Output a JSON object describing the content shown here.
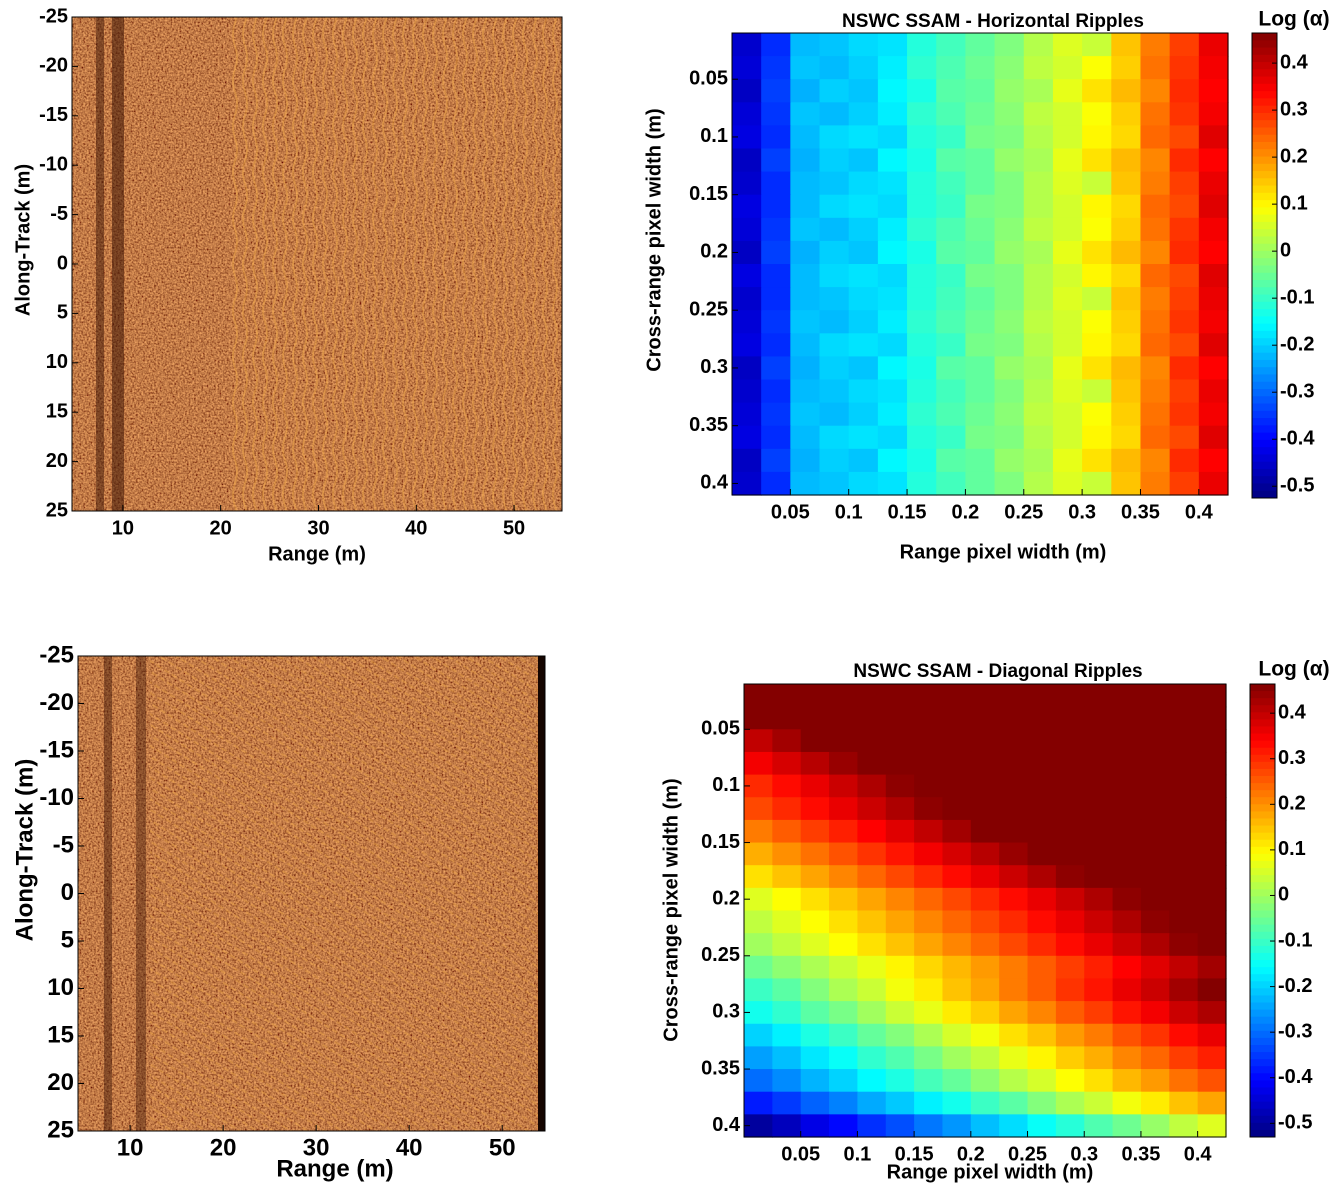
{
  "chart_data": [
    {
      "type": "image",
      "xlabel": "Range (m)",
      "ylabel": "Along-Track (m)",
      "xlim": [
        4.8,
        54.9
      ],
      "ylim": [
        -25,
        25
      ],
      "xticks": [
        10,
        20,
        30,
        40,
        50
      ],
      "yticks": [
        -25,
        -20,
        -15,
        -10,
        -5,
        0,
        5,
        10,
        15,
        20,
        25
      ]
    },
    {
      "type": "heatmap",
      "title": "NSWC SSAM - Horizontal Ripples",
      "xlabel": "Range pixel width (m)",
      "ylabel": "Cross-range pixel width (m)",
      "colorbar_label": "Log (α)",
      "colormap": "jet",
      "xlim": [
        0,
        0.425
      ],
      "ylim": [
        0.01,
        0.41
      ],
      "clim": [
        -0.525,
        0.464
      ],
      "xticks": [
        0.05,
        0.1,
        0.15,
        0.2,
        0.25,
        0.3,
        0.35,
        0.4
      ],
      "yticks": [
        0.05,
        0.1,
        0.15,
        0.2,
        0.25,
        0.3,
        0.35,
        0.4
      ],
      "cticks": [
        -0.5,
        -0.4,
        -0.3,
        -0.2,
        -0.1,
        0,
        0.1,
        0.2,
        0.3,
        0.4
      ],
      "z": [
        [
          -0.45,
          -0.36,
          -0.22,
          -0.21,
          -0.19,
          -0.18,
          -0.12,
          -0.09,
          -0.06,
          -0.03,
          0.02,
          0.06,
          0.04,
          0.15,
          0.22,
          0.28,
          0.36
        ],
        [
          -0.44,
          -0.35,
          -0.21,
          -0.22,
          -0.2,
          -0.17,
          -0.11,
          -0.08,
          -0.05,
          -0.02,
          0.03,
          0.05,
          0.09,
          0.14,
          0.23,
          0.29,
          0.35
        ],
        [
          -0.46,
          -0.34,
          -0.23,
          -0.2,
          -0.21,
          -0.16,
          -0.13,
          -0.07,
          -0.06,
          -0.01,
          0.01,
          0.07,
          0.12,
          0.16,
          0.21,
          0.3,
          0.34
        ],
        [
          -0.44,
          -0.35,
          -0.21,
          -0.22,
          -0.2,
          -0.17,
          -0.11,
          -0.08,
          -0.05,
          -0.02,
          0.03,
          0.05,
          0.09,
          0.14,
          0.23,
          0.29,
          0.35
        ],
        [
          -0.43,
          -0.36,
          -0.22,
          -0.19,
          -0.18,
          -0.19,
          -0.12,
          -0.1,
          -0.04,
          -0.03,
          0.02,
          0.05,
          0.1,
          0.13,
          0.24,
          0.27,
          0.37
        ],
        [
          -0.46,
          -0.34,
          -0.23,
          -0.2,
          -0.21,
          -0.16,
          -0.13,
          -0.07,
          -0.06,
          -0.01,
          0.01,
          0.07,
          0.12,
          0.16,
          0.21,
          0.3,
          0.34
        ],
        [
          -0.45,
          -0.36,
          -0.22,
          -0.21,
          -0.19,
          -0.18,
          -0.12,
          -0.09,
          -0.06,
          -0.03,
          0.02,
          0.06,
          0.04,
          0.15,
          0.22,
          0.28,
          0.36
        ],
        [
          -0.43,
          -0.36,
          -0.22,
          -0.19,
          -0.18,
          -0.19,
          -0.12,
          -0.1,
          -0.04,
          -0.03,
          0.02,
          0.05,
          0.1,
          0.13,
          0.24,
          0.27,
          0.37
        ],
        [
          -0.44,
          -0.35,
          -0.21,
          -0.22,
          -0.2,
          -0.17,
          -0.11,
          -0.08,
          -0.05,
          -0.02,
          0.03,
          0.05,
          0.09,
          0.14,
          0.23,
          0.29,
          0.35
        ],
        [
          -0.46,
          -0.34,
          -0.23,
          -0.2,
          -0.21,
          -0.16,
          -0.13,
          -0.07,
          -0.06,
          -0.01,
          0.01,
          0.07,
          0.12,
          0.16,
          0.21,
          0.3,
          0.34
        ],
        [
          -0.43,
          -0.36,
          -0.22,
          -0.19,
          -0.18,
          -0.19,
          -0.12,
          -0.1,
          -0.04,
          -0.03,
          0.02,
          0.05,
          0.1,
          0.13,
          0.24,
          0.27,
          0.37
        ],
        [
          -0.45,
          -0.36,
          -0.22,
          -0.21,
          -0.19,
          -0.18,
          -0.12,
          -0.09,
          -0.06,
          -0.03,
          0.02,
          0.06,
          0.04,
          0.15,
          0.22,
          0.28,
          0.36
        ],
        [
          -0.44,
          -0.35,
          -0.21,
          -0.22,
          -0.2,
          -0.17,
          -0.11,
          -0.08,
          -0.05,
          -0.02,
          0.03,
          0.05,
          0.09,
          0.14,
          0.23,
          0.29,
          0.35
        ],
        [
          -0.43,
          -0.36,
          -0.22,
          -0.19,
          -0.18,
          -0.19,
          -0.12,
          -0.1,
          -0.04,
          -0.03,
          0.02,
          0.05,
          0.1,
          0.13,
          0.24,
          0.27,
          0.37
        ],
        [
          -0.46,
          -0.34,
          -0.23,
          -0.2,
          -0.21,
          -0.16,
          -0.13,
          -0.07,
          -0.06,
          -0.01,
          0.01,
          0.07,
          0.12,
          0.16,
          0.21,
          0.3,
          0.34
        ],
        [
          -0.45,
          -0.36,
          -0.22,
          -0.21,
          -0.19,
          -0.18,
          -0.12,
          -0.09,
          -0.06,
          -0.03,
          0.02,
          0.06,
          0.04,
          0.15,
          0.22,
          0.28,
          0.36
        ],
        [
          -0.44,
          -0.35,
          -0.21,
          -0.22,
          -0.2,
          -0.17,
          -0.11,
          -0.08,
          -0.05,
          -0.02,
          0.03,
          0.05,
          0.09,
          0.14,
          0.23,
          0.29,
          0.35
        ],
        [
          -0.43,
          -0.36,
          -0.22,
          -0.19,
          -0.18,
          -0.19,
          -0.12,
          -0.1,
          -0.04,
          -0.03,
          0.02,
          0.05,
          0.1,
          0.13,
          0.24,
          0.27,
          0.37
        ],
        [
          -0.46,
          -0.34,
          -0.23,
          -0.2,
          -0.21,
          -0.16,
          -0.13,
          -0.07,
          -0.06,
          -0.01,
          0.01,
          0.07,
          0.12,
          0.16,
          0.21,
          0.3,
          0.34
        ],
        [
          -0.45,
          -0.36,
          -0.22,
          -0.21,
          -0.19,
          -0.18,
          -0.12,
          -0.09,
          -0.06,
          -0.03,
          0.02,
          0.06,
          0.04,
          0.15,
          0.22,
          0.28,
          0.36
        ]
      ]
    },
    {
      "type": "image",
      "xlabel": "Range (m)",
      "ylabel": "Along-Track (m)",
      "xlim": [
        4.4,
        54.6
      ],
      "ylim": [
        -25,
        25
      ],
      "xticks": [
        10,
        20,
        30,
        40,
        50
      ],
      "yticks": [
        -25,
        -20,
        -15,
        -10,
        -5,
        0,
        5,
        10,
        15,
        20,
        25
      ]
    },
    {
      "type": "heatmap",
      "title": "NSWC SSAM - Diagonal Ripples",
      "xlabel": "Range pixel width (m)",
      "ylabel": "Cross-range pixel width (m)",
      "colorbar_label": "Log (α)",
      "colormap": "jet",
      "xlim": [
        0,
        0.425
      ],
      "ylim": [
        0.01,
        0.41
      ],
      "clim": [
        -0.53,
        0.464
      ],
      "xticks": [
        0.05,
        0.1,
        0.15,
        0.2,
        0.25,
        0.3,
        0.35,
        0.4
      ],
      "yticks": [
        0.05,
        0.1,
        0.15,
        0.2,
        0.25,
        0.3,
        0.35,
        0.4
      ],
      "cticks": [
        -0.5,
        -0.4,
        -0.3,
        -0.2,
        -0.1,
        0,
        0.1,
        0.2,
        0.3,
        0.4
      ],
      "z": [
        [
          0.46,
          0.46,
          0.46,
          0.46,
          0.46,
          0.46,
          0.46,
          0.46,
          0.46,
          0.46,
          0.46,
          0.46,
          0.46,
          0.46,
          0.46,
          0.46,
          0.46
        ],
        [
          0.46,
          0.46,
          0.46,
          0.46,
          0.46,
          0.46,
          0.46,
          0.46,
          0.46,
          0.46,
          0.46,
          0.46,
          0.46,
          0.46,
          0.46,
          0.46,
          0.46
        ],
        [
          0.4,
          0.43,
          0.46,
          0.46,
          0.46,
          0.46,
          0.46,
          0.46,
          0.46,
          0.46,
          0.46,
          0.46,
          0.46,
          0.46,
          0.46,
          0.46,
          0.46
        ],
        [
          0.35,
          0.38,
          0.41,
          0.44,
          0.46,
          0.46,
          0.46,
          0.46,
          0.46,
          0.46,
          0.46,
          0.46,
          0.46,
          0.46,
          0.46,
          0.46,
          0.46
        ],
        [
          0.3,
          0.33,
          0.36,
          0.39,
          0.42,
          0.45,
          0.46,
          0.46,
          0.46,
          0.46,
          0.46,
          0.46,
          0.46,
          0.46,
          0.46,
          0.46,
          0.46
        ],
        [
          0.27,
          0.3,
          0.33,
          0.36,
          0.39,
          0.42,
          0.45,
          0.46,
          0.46,
          0.46,
          0.46,
          0.46,
          0.46,
          0.46,
          0.46,
          0.46,
          0.46
        ],
        [
          0.22,
          0.25,
          0.28,
          0.31,
          0.34,
          0.37,
          0.4,
          0.43,
          0.46,
          0.46,
          0.46,
          0.46,
          0.46,
          0.46,
          0.46,
          0.46,
          0.46
        ],
        [
          0.17,
          0.2,
          0.23,
          0.26,
          0.29,
          0.32,
          0.35,
          0.38,
          0.41,
          0.44,
          0.46,
          0.46,
          0.46,
          0.46,
          0.46,
          0.46,
          0.46
        ],
        [
          0.12,
          0.15,
          0.18,
          0.21,
          0.24,
          0.27,
          0.3,
          0.33,
          0.36,
          0.39,
          0.42,
          0.45,
          0.46,
          0.46,
          0.46,
          0.46,
          0.46
        ],
        [
          0.06,
          0.09,
          0.12,
          0.15,
          0.18,
          0.21,
          0.24,
          0.27,
          0.3,
          0.33,
          0.36,
          0.39,
          0.42,
          0.45,
          0.46,
          0.46,
          0.46
        ],
        [
          0.03,
          0.06,
          0.09,
          0.12,
          0.15,
          0.18,
          0.21,
          0.24,
          0.27,
          0.3,
          0.33,
          0.36,
          0.39,
          0.42,
          0.45,
          0.46,
          0.46
        ],
        [
          0.0,
          0.03,
          0.06,
          0.09,
          0.12,
          0.15,
          0.18,
          0.21,
          0.24,
          0.27,
          0.3,
          0.33,
          0.36,
          0.39,
          0.42,
          0.45,
          0.46
        ],
        [
          -0.05,
          -0.02,
          0.01,
          0.04,
          0.07,
          0.1,
          0.13,
          0.16,
          0.19,
          0.22,
          0.25,
          0.28,
          0.31,
          0.34,
          0.37,
          0.4,
          0.43
        ],
        [
          -0.1,
          -0.07,
          -0.03,
          0.01,
          0.04,
          0.08,
          0.11,
          0.15,
          0.18,
          0.22,
          0.25,
          0.29,
          0.32,
          0.36,
          0.39,
          0.43,
          0.46
        ],
        [
          -0.14,
          -0.11,
          -0.07,
          -0.04,
          0.0,
          0.04,
          0.07,
          0.11,
          0.14,
          0.18,
          0.21,
          0.25,
          0.28,
          0.32,
          0.35,
          0.39,
          0.42
        ],
        [
          -0.2,
          -0.17,
          -0.13,
          -0.1,
          -0.06,
          -0.03,
          0.01,
          0.05,
          0.08,
          0.12,
          0.15,
          0.19,
          0.22,
          0.26,
          0.29,
          0.33,
          0.36
        ],
        [
          -0.25,
          -0.22,
          -0.18,
          -0.15,
          -0.11,
          -0.08,
          -0.04,
          0.0,
          0.03,
          0.07,
          0.1,
          0.14,
          0.17,
          0.21,
          0.24,
          0.28,
          0.31
        ],
        [
          -0.3,
          -0.27,
          -0.23,
          -0.2,
          -0.16,
          -0.13,
          -0.09,
          -0.06,
          -0.02,
          0.02,
          0.05,
          0.09,
          0.12,
          0.16,
          0.19,
          0.23,
          0.26
        ],
        [
          -0.38,
          -0.35,
          -0.31,
          -0.28,
          -0.24,
          -0.21,
          -0.17,
          -0.14,
          -0.1,
          -0.07,
          -0.03,
          0.01,
          0.04,
          0.08,
          0.11,
          0.15,
          0.18
        ],
        [
          -0.5,
          -0.47,
          -0.43,
          -0.4,
          -0.36,
          -0.33,
          -0.29,
          -0.26,
          -0.22,
          -0.19,
          -0.15,
          -0.12,
          -0.08,
          -0.05,
          -0.01,
          0.03,
          0.06
        ]
      ]
    }
  ]
}
